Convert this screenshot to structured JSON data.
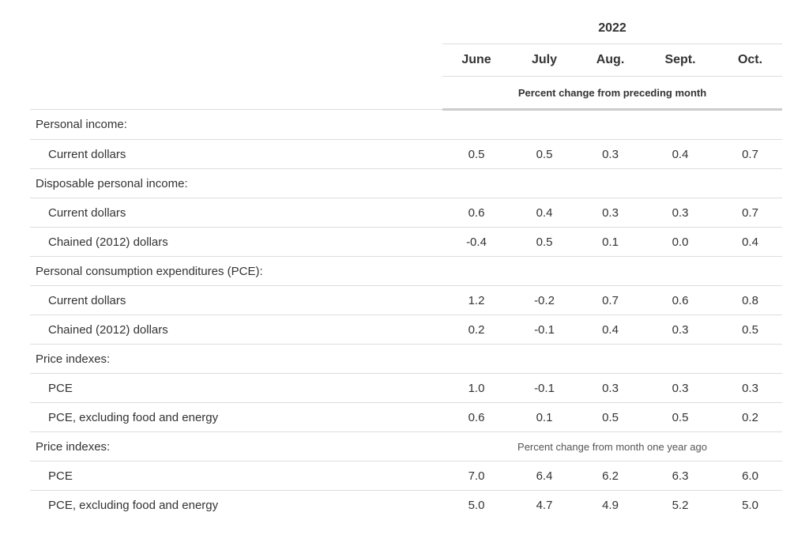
{
  "header": {
    "year": "2022",
    "months": [
      "June",
      "July",
      "Aug.",
      "Sept.",
      "Oct."
    ],
    "unit_top": "Percent change from preceding month"
  },
  "rows": [
    {
      "label": "Personal income:",
      "type": "section"
    },
    {
      "label": "Current dollars",
      "type": "data",
      "values": [
        "0.5",
        "0.5",
        "0.3",
        "0.4",
        "0.7"
      ]
    },
    {
      "label": "Disposable personal income:",
      "type": "section"
    },
    {
      "label": "Current dollars",
      "type": "data",
      "values": [
        "0.6",
        "0.4",
        "0.3",
        "0.3",
        "0.7"
      ]
    },
    {
      "label": "Chained (2012) dollars",
      "type": "data",
      "values": [
        "-0.4",
        "0.5",
        "0.1",
        "0.0",
        "0.4"
      ]
    },
    {
      "label": "Personal consumption expenditures (PCE):",
      "type": "section"
    },
    {
      "label": "Current dollars",
      "type": "data",
      "values": [
        "1.2",
        "-0.2",
        "0.7",
        "0.6",
        "0.8"
      ]
    },
    {
      "label": "Chained (2012) dollars",
      "type": "data",
      "values": [
        "0.2",
        "-0.1",
        "0.4",
        "0.3",
        "0.5"
      ]
    },
    {
      "label": "Price indexes:",
      "type": "section"
    },
    {
      "label": "PCE",
      "type": "data",
      "values": [
        "1.0",
        "-0.1",
        "0.3",
        "0.3",
        "0.3"
      ]
    },
    {
      "label": "PCE, excluding food and energy",
      "type": "data",
      "values": [
        "0.6",
        "0.1",
        "0.5",
        "0.5",
        "0.2"
      ]
    },
    {
      "label": "Price indexes:",
      "type": "section",
      "note": "Percent change from month one year ago"
    },
    {
      "label": "PCE",
      "type": "data",
      "values": [
        "7.0",
        "6.4",
        "6.2",
        "6.3",
        "6.0"
      ]
    },
    {
      "label": "PCE, excluding food and energy",
      "type": "data",
      "values": [
        "5.0",
        "4.7",
        "4.9",
        "5.2",
        "5.0"
      ]
    }
  ]
}
